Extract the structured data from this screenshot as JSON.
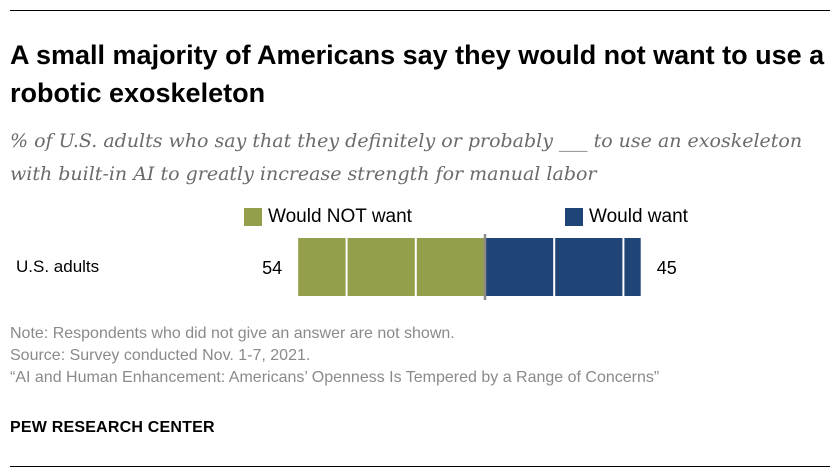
{
  "title": "A small majority of Americans say they would not want to use a robotic exoskeleton",
  "subtitle": "% of U.S. adults who say that they definitely or probably ___ to use an exoskeleton with built-in AI to greatly increase strength for manual labor",
  "legend": {
    "not_want": "Would NOT want",
    "want": "Would want"
  },
  "colors": {
    "not_want": "#949e4b",
    "want": "#1f4476",
    "divider": "#8a8a8a"
  },
  "chart_data": {
    "type": "bar",
    "orientation": "horizontal-diverging",
    "categories": [
      "U.S. adults"
    ],
    "series": [
      {
        "name": "Would NOT want",
        "values": [
          54
        ]
      },
      {
        "name": "Would want",
        "values": [
          45
        ]
      }
    ],
    "data_labels": {
      "not_want": "54",
      "want": "45"
    }
  },
  "notes": {
    "note": "Note: Respondents who did not give an answer are not shown.",
    "source": "Source: Survey conducted Nov. 1-7, 2021.",
    "report": "“AI and Human Enhancement: Americans’ Openness Is Tempered by a Range of Concerns”"
  },
  "brand": "PEW RESEARCH CENTER"
}
